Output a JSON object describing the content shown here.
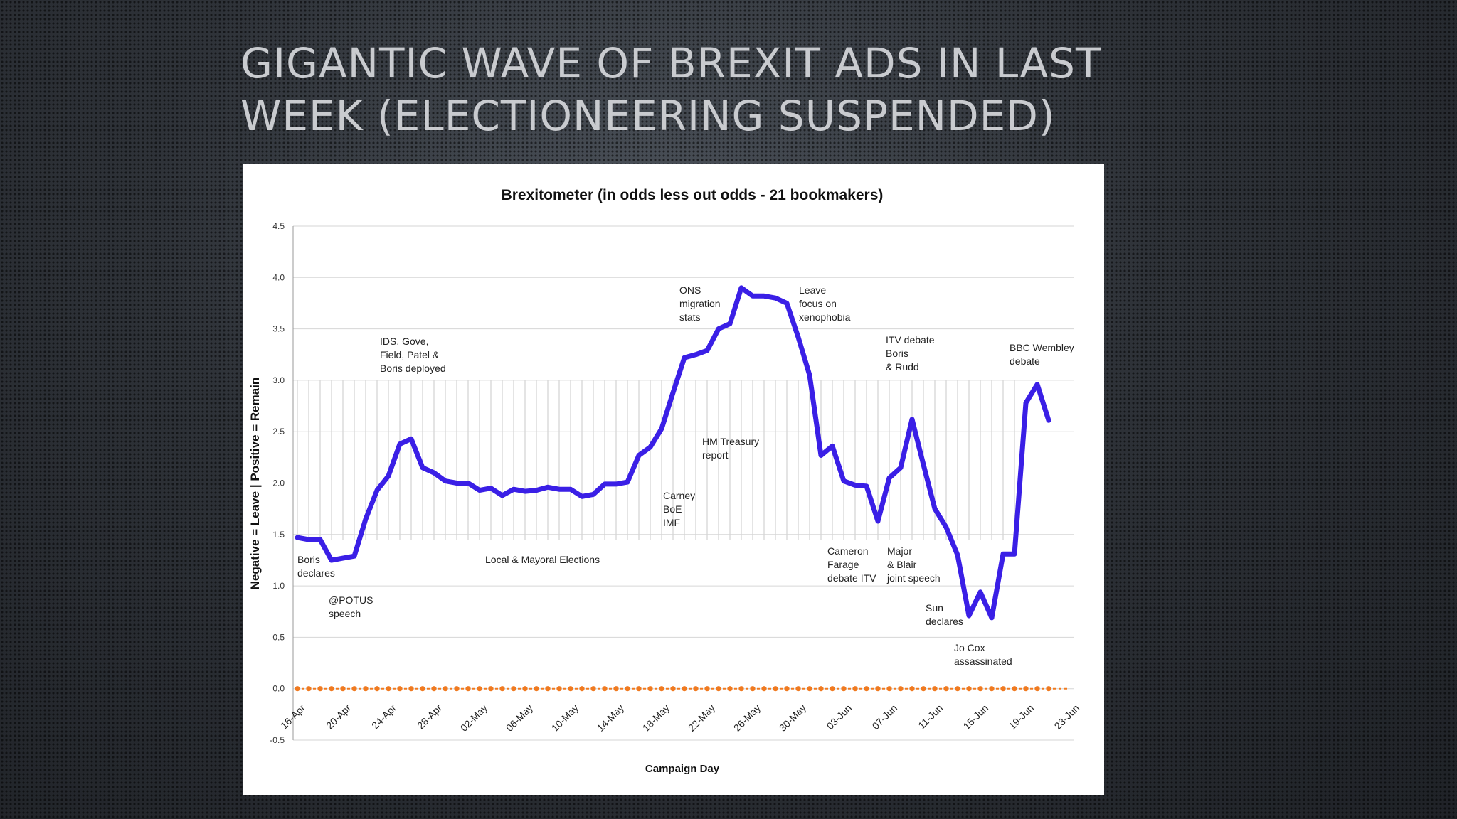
{
  "slide": {
    "title_line1": "GIGANTIC WAVE OF BREXIT ADS IN LAST",
    "title_line2": "WEEK (ELECTIONEERING SUSPENDED)"
  },
  "chart_data": {
    "type": "line",
    "title": "Brexitometer (in odds less out odds - 21 bookmakers)",
    "xlabel": "Campaign Day",
    "ylabel": "Negative = Leave | Positive = Remain",
    "ylim": [
      -0.5,
      4.5
    ],
    "yticks": [
      "-0.5",
      "0.0",
      "0.5",
      "1.0",
      "1.5",
      "2.0",
      "2.5",
      "3.0",
      "3.5",
      "4.0",
      "4.5"
    ],
    "x_tick_labels": [
      "16-Apr",
      "20-Apr",
      "24-Apr",
      "28-Apr",
      "02-May",
      "06-May",
      "10-May",
      "14-May",
      "18-May",
      "22-May",
      "26-May",
      "30-May",
      "03-Jun",
      "07-Jun",
      "11-Jun",
      "15-Jun",
      "19-Jun",
      "23-Jun"
    ],
    "grid": true,
    "shaded_period": {
      "label": "Local & Mayoral Elections",
      "range_days": [
        0,
        63
      ],
      "y_top": 3.0
    },
    "series": [
      {
        "name": "Brexitometer",
        "color": "#3a1fe6",
        "values": [
          1.47,
          1.45,
          1.45,
          1.25,
          1.27,
          1.29,
          1.65,
          1.93,
          2.07,
          2.38,
          2.43,
          2.15,
          2.1,
          2.02,
          2.0,
          2.0,
          1.93,
          1.95,
          1.88,
          1.94,
          1.92,
          1.93,
          1.96,
          1.94,
          1.94,
          1.87,
          1.89,
          1.99,
          1.99,
          2.01,
          2.27,
          2.35,
          2.53,
          2.88,
          3.22,
          3.25,
          3.29,
          3.5,
          3.55,
          3.9,
          3.82,
          3.82,
          3.8,
          3.75,
          3.42,
          3.05,
          2.27,
          2.36,
          2.02,
          1.98,
          1.97,
          1.63,
          2.05,
          2.15,
          2.62,
          2.18,
          1.75,
          1.57,
          1.3,
          0.71,
          0.94,
          0.69,
          1.31,
          1.31,
          2.78,
          2.96,
          2.61
        ]
      },
      {
        "name": "Zero line",
        "color": "#f07a20",
        "constant": 0.0
      }
    ],
    "annotations": [
      {
        "id": "boris-declares",
        "lines": [
          "Boris",
          "declares"
        ]
      },
      {
        "id": "potus",
        "lines": [
          "@POTUS",
          "speech"
        ]
      },
      {
        "id": "ids-gove",
        "lines": [
          "IDS, Gove,",
          "Field, Patel &",
          "Boris deployed"
        ]
      },
      {
        "id": "local-elections",
        "lines": [
          "Local & Mayoral Elections"
        ]
      },
      {
        "id": "carney",
        "lines": [
          "Carney",
          "BoE",
          "IMF"
        ]
      },
      {
        "id": "hm-treasury",
        "lines": [
          "HM Treasury",
          "report"
        ]
      },
      {
        "id": "ons",
        "lines": [
          "ONS",
          "migration",
          "stats"
        ]
      },
      {
        "id": "leave-focus",
        "lines": [
          "Leave",
          "focus on",
          "xenophobia"
        ]
      },
      {
        "id": "cameron",
        "lines": [
          "Cameron",
          "Farage",
          "debate ITV"
        ]
      },
      {
        "id": "major-blair",
        "lines": [
          "Major",
          "& Blair",
          "joint speech"
        ]
      },
      {
        "id": "itv-debate",
        "lines": [
          "ITV debate",
          "Boris",
          "& Rudd"
        ]
      },
      {
        "id": "sun",
        "lines": [
          "Sun",
          "declares"
        ]
      },
      {
        "id": "jo-cox",
        "lines": [
          "Jo Cox",
          "assassinated"
        ]
      },
      {
        "id": "bbc-wembley",
        "lines": [
          "BBC Wembley",
          "debate"
        ]
      }
    ]
  }
}
